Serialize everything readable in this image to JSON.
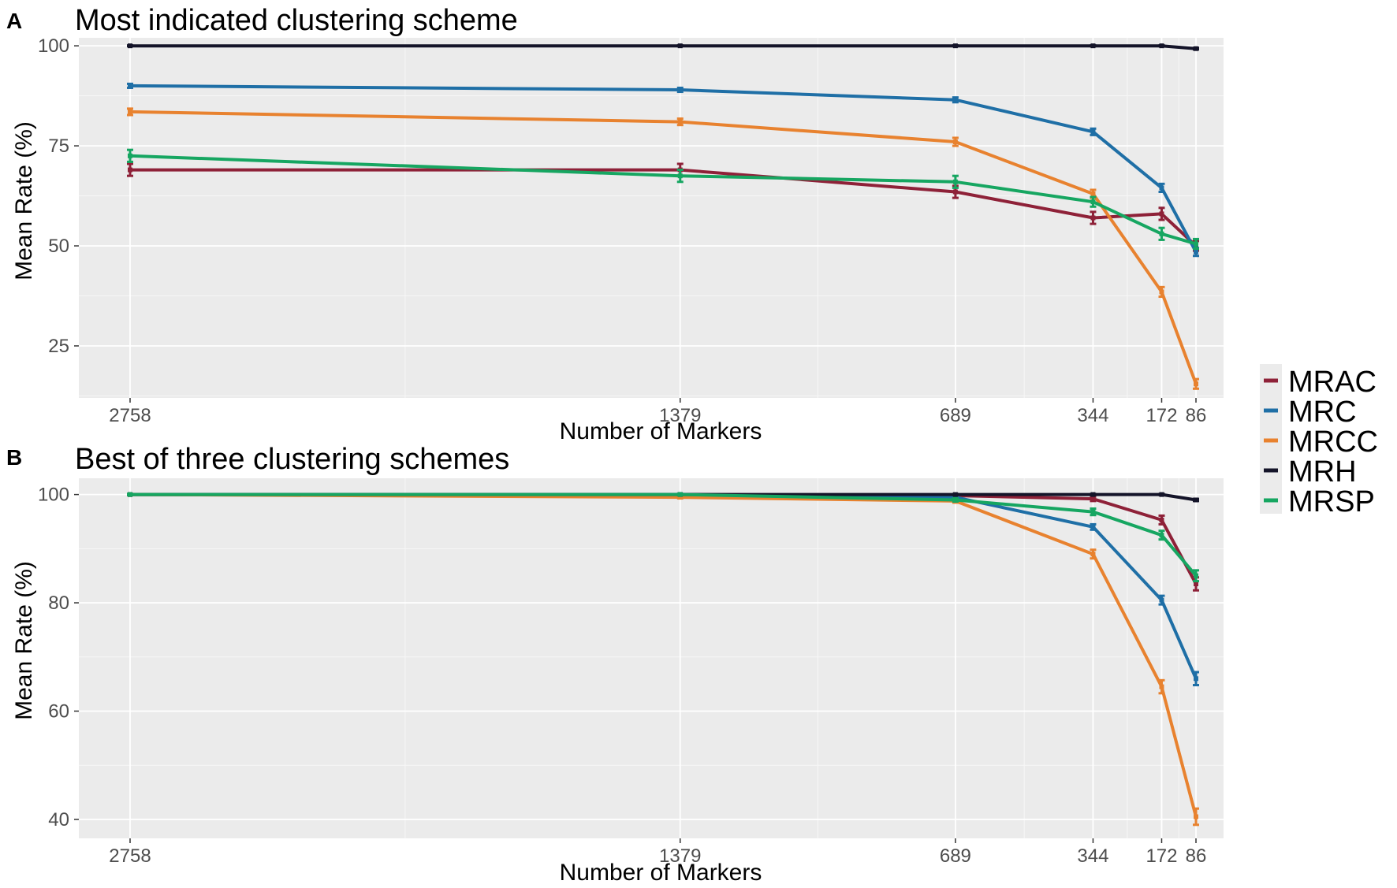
{
  "figure": {
    "legend": {
      "entries": [
        {
          "name": "MRAC",
          "color": "#8e2138"
        },
        {
          "name": "MRC",
          "color": "#1f6fa6"
        },
        {
          "name": "MRCC",
          "color": "#e8822f"
        },
        {
          "name": "MRH",
          "color": "#141429"
        },
        {
          "name": "MRSP",
          "color": "#16a661"
        }
      ]
    }
  },
  "chart_data": [
    {
      "type": "line",
      "panel_letter": "A",
      "title": "Most indicated clustering scheme",
      "xlabel": "Number of Markers",
      "ylabel": "Mean Rate (%)",
      "x_scale": "linear (axis reversed: 2758 at left, 86 at right)",
      "x": [
        2758,
        1379,
        689,
        344,
        172,
        86
      ],
      "x_tick_labels": [
        "2758",
        "1379",
        "689",
        "344",
        "172",
        "86"
      ],
      "xlim": [
        2758,
        86
      ],
      "ylim": [
        12,
        102
      ],
      "y_ticks": [
        25,
        50,
        75,
        100
      ],
      "grid": true,
      "error_bars": true,
      "legend_position": "right",
      "series": [
        {
          "name": "MRAC",
          "values": [
            69,
            69,
            63.5,
            57,
            58,
            50
          ],
          "errors": [
            1.5,
            1.5,
            1.5,
            1.5,
            1.5,
            1.2
          ]
        },
        {
          "name": "MRC",
          "values": [
            90,
            89,
            86.5,
            78.5,
            64.5,
            48.5
          ],
          "errors": [
            0.5,
            0.5,
            0.6,
            0.8,
            1.0,
            1.0
          ]
        },
        {
          "name": "MRCC",
          "values": [
            83.5,
            81,
            76,
            63,
            38.5,
            15.5
          ],
          "errors": [
            0.8,
            0.8,
            1.0,
            1.0,
            1.2,
            1.2
          ]
        },
        {
          "name": "MRH",
          "values": [
            100,
            100,
            100,
            100,
            100,
            99.3
          ],
          "errors": [
            0.1,
            0.1,
            0.1,
            0.1,
            0.1,
            0.2
          ]
        },
        {
          "name": "MRSP",
          "values": [
            72.5,
            67.5,
            66,
            61,
            53,
            50.5
          ],
          "errors": [
            1.5,
            1.5,
            1.5,
            1.2,
            1.5,
            1.2
          ]
        }
      ]
    },
    {
      "type": "line",
      "panel_letter": "B",
      "title": "Best of three clustering schemes",
      "xlabel": "Number of Markers",
      "ylabel": "Mean Rate (%)",
      "x_scale": "linear (axis reversed: 2758 at left, 86 at right)",
      "x": [
        2758,
        1379,
        689,
        344,
        172,
        86
      ],
      "x_tick_labels": [
        "2758",
        "1379",
        "689",
        "344",
        "172",
        "86"
      ],
      "xlim": [
        2758,
        86
      ],
      "ylim": [
        36.5,
        103
      ],
      "y_ticks": [
        40,
        60,
        80,
        100
      ],
      "grid": true,
      "error_bars": true,
      "legend_position": "right",
      "series": [
        {
          "name": "MRAC",
          "values": [
            100,
            100,
            99.8,
            99.2,
            95.3,
            83.5
          ],
          "errors": [
            0.1,
            0.1,
            0.2,
            0.4,
            0.8,
            1.2
          ]
        },
        {
          "name": "MRC",
          "values": [
            100,
            100,
            99.5,
            94,
            80.5,
            66
          ],
          "errors": [
            0.1,
            0.1,
            0.2,
            0.5,
            0.8,
            1.2
          ]
        },
        {
          "name": "MRCC",
          "values": [
            100,
            99.5,
            98.8,
            89,
            64.5,
            40.5
          ],
          "errors": [
            0.1,
            0.2,
            0.3,
            0.8,
            1.2,
            1.5
          ]
        },
        {
          "name": "MRH",
          "values": [
            100,
            100,
            100,
            100,
            100,
            99
          ],
          "errors": [
            0.1,
            0.1,
            0.1,
            0.1,
            0.1,
            0.2
          ]
        },
        {
          "name": "MRSP",
          "values": [
            100,
            100,
            99,
            96.8,
            92.5,
            85
          ],
          "errors": [
            0.1,
            0.1,
            0.3,
            0.6,
            0.8,
            1.0
          ]
        }
      ]
    }
  ]
}
